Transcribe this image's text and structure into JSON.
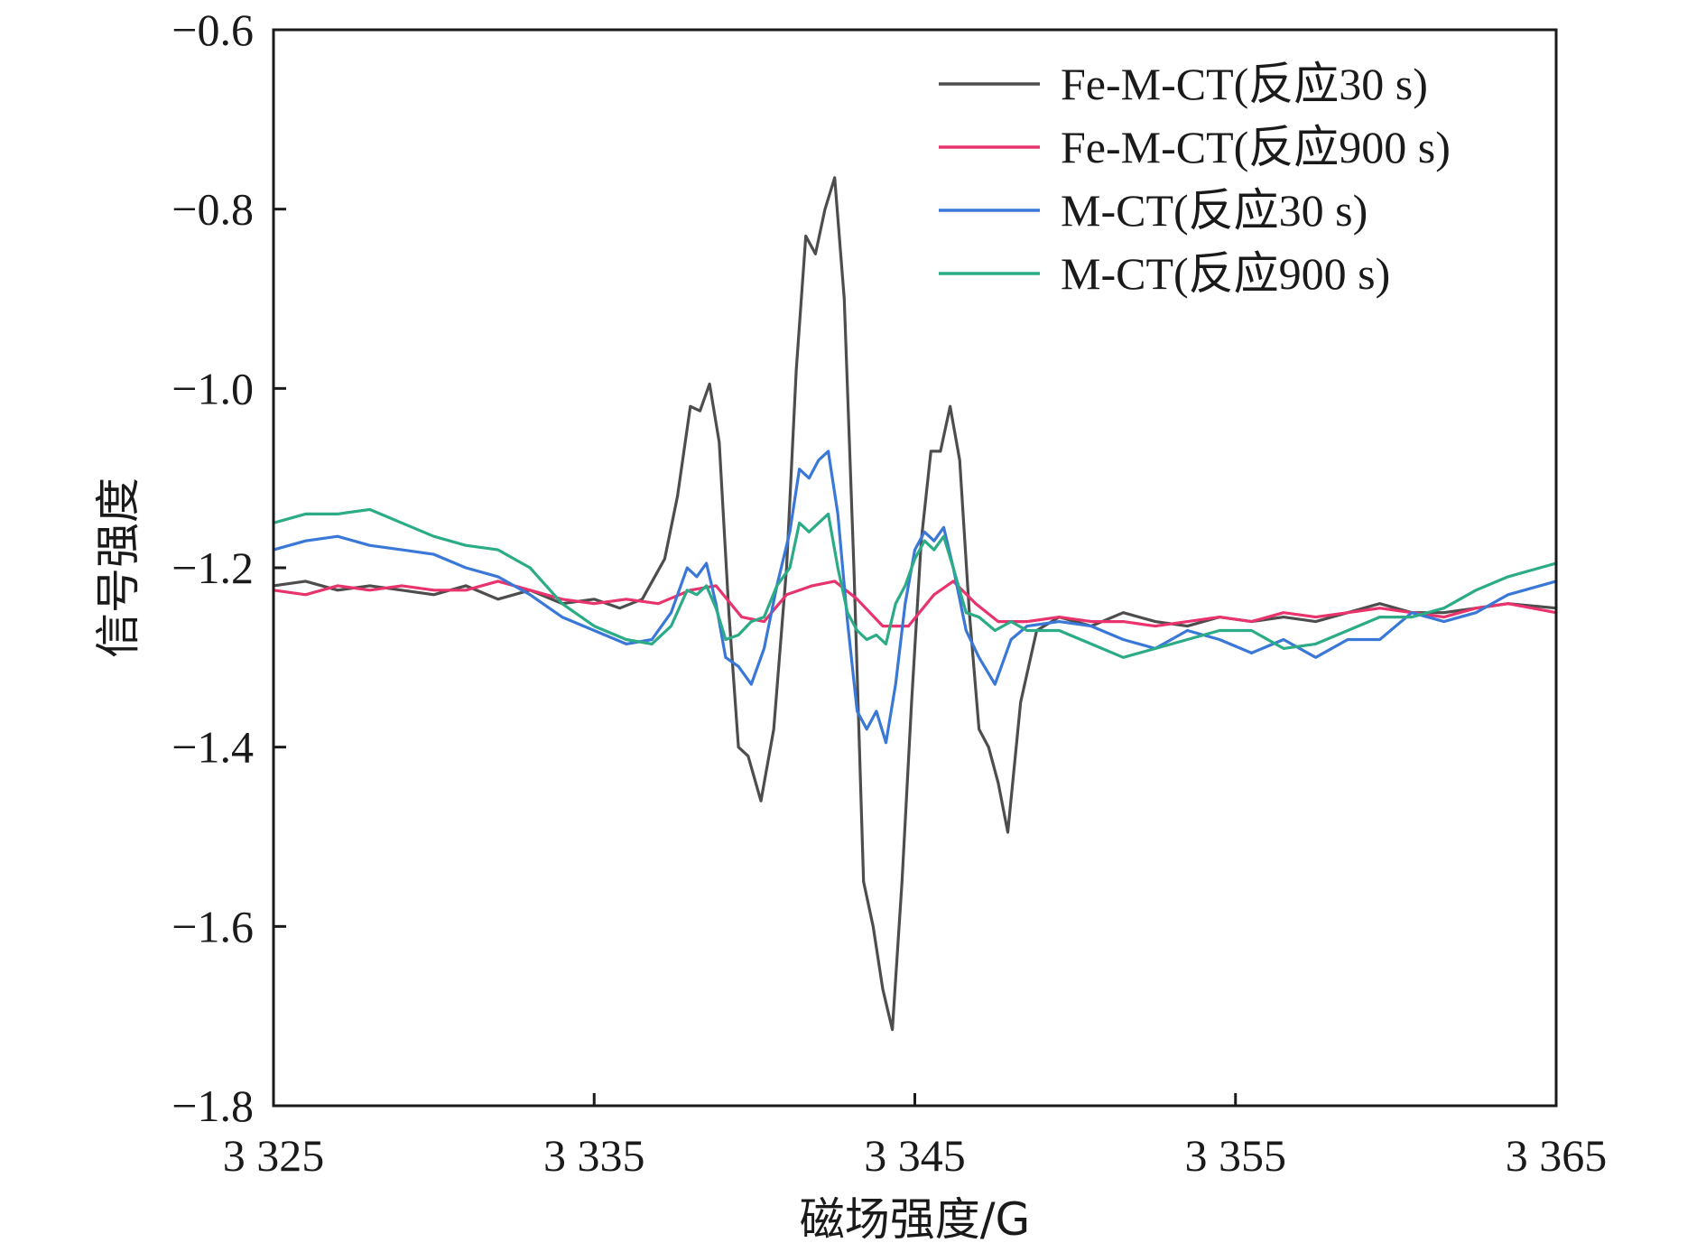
{
  "chart_data": {
    "type": "line",
    "title": "",
    "xlabel": "磁场强度/G",
    "ylabel": "信号强度",
    "xlim": [
      3325,
      3365
    ],
    "ylim": [
      -1.8,
      -0.6
    ],
    "x_ticks": [
      3325,
      3335,
      3345,
      3355,
      3365
    ],
    "x_tick_labels": [
      "3 325",
      "3 335",
      "3 345",
      "3 355",
      "3 365"
    ],
    "y_ticks": [
      -1.8,
      -1.6,
      -1.4,
      -1.2,
      -1.0,
      -0.8,
      -0.6
    ],
    "y_tick_labels": [
      "−1.8",
      "−1.6",
      "−1.4",
      "−1.2",
      "−1.0",
      "−0.8",
      "−0.6"
    ],
    "grid": false,
    "legend_position": "top-right",
    "series": [
      {
        "name": "Fe-M-CT(反应30 s)",
        "color": "#4d4d4d",
        "points": [
          [
            3325,
            -1.22
          ],
          [
            3326,
            -1.215
          ],
          [
            3327,
            -1.225
          ],
          [
            3328,
            -1.22
          ],
          [
            3329,
            -1.225
          ],
          [
            3330,
            -1.23
          ],
          [
            3331,
            -1.22
          ],
          [
            3332,
            -1.235
          ],
          [
            3333,
            -1.225
          ],
          [
            3334,
            -1.24
          ],
          [
            3335,
            -1.235
          ],
          [
            3335.8,
            -1.245
          ],
          [
            3336.5,
            -1.235
          ],
          [
            3337.2,
            -1.19
          ],
          [
            3337.6,
            -1.12
          ],
          [
            3338.0,
            -1.02
          ],
          [
            3338.3,
            -1.025
          ],
          [
            3338.6,
            -0.995
          ],
          [
            3338.9,
            -1.06
          ],
          [
            3339.2,
            -1.25
          ],
          [
            3339.5,
            -1.4
          ],
          [
            3339.8,
            -1.41
          ],
          [
            3340.2,
            -1.46
          ],
          [
            3340.6,
            -1.38
          ],
          [
            3341.0,
            -1.2
          ],
          [
            3341.3,
            -0.98
          ],
          [
            3341.6,
            -0.83
          ],
          [
            3341.9,
            -0.85
          ],
          [
            3342.2,
            -0.8
          ],
          [
            3342.5,
            -0.765
          ],
          [
            3342.8,
            -0.9
          ],
          [
            3343.1,
            -1.2
          ],
          [
            3343.4,
            -1.55
          ],
          [
            3343.7,
            -1.6
          ],
          [
            3344.0,
            -1.67
          ],
          [
            3344.3,
            -1.715
          ],
          [
            3344.6,
            -1.55
          ],
          [
            3344.9,
            -1.35
          ],
          [
            3345.2,
            -1.17
          ],
          [
            3345.5,
            -1.07
          ],
          [
            3345.8,
            -1.07
          ],
          [
            3346.1,
            -1.02
          ],
          [
            3346.4,
            -1.08
          ],
          [
            3346.7,
            -1.25
          ],
          [
            3347.0,
            -1.38
          ],
          [
            3347.3,
            -1.4
          ],
          [
            3347.6,
            -1.44
          ],
          [
            3347.9,
            -1.495
          ],
          [
            3348.3,
            -1.35
          ],
          [
            3348.8,
            -1.27
          ],
          [
            3349.5,
            -1.255
          ],
          [
            3350.5,
            -1.265
          ],
          [
            3351.5,
            -1.25
          ],
          [
            3352.5,
            -1.26
          ],
          [
            3353.5,
            -1.265
          ],
          [
            3354.5,
            -1.255
          ],
          [
            3355.5,
            -1.26
          ],
          [
            3356.5,
            -1.255
          ],
          [
            3357.5,
            -1.26
          ],
          [
            3358.5,
            -1.25
          ],
          [
            3359.5,
            -1.24
          ],
          [
            3360.5,
            -1.25
          ],
          [
            3361.5,
            -1.25
          ],
          [
            3362.5,
            -1.245
          ],
          [
            3363.5,
            -1.24
          ],
          [
            3365,
            -1.245
          ]
        ]
      },
      {
        "name": "Fe-M-CT(反应900 s)",
        "color": "#e8336d",
        "points": [
          [
            3325,
            -1.225
          ],
          [
            3326,
            -1.23
          ],
          [
            3327,
            -1.22
          ],
          [
            3328,
            -1.225
          ],
          [
            3329,
            -1.22
          ],
          [
            3330,
            -1.225
          ],
          [
            3331,
            -1.225
          ],
          [
            3332,
            -1.215
          ],
          [
            3333,
            -1.225
          ],
          [
            3334,
            -1.235
          ],
          [
            3335,
            -1.24
          ],
          [
            3336,
            -1.235
          ],
          [
            3337,
            -1.24
          ],
          [
            3338,
            -1.225
          ],
          [
            3338.8,
            -1.22
          ],
          [
            3339.6,
            -1.255
          ],
          [
            3340.3,
            -1.26
          ],
          [
            3341.0,
            -1.23
          ],
          [
            3341.8,
            -1.22
          ],
          [
            3342.5,
            -1.215
          ],
          [
            3343.2,
            -1.235
          ],
          [
            3344.0,
            -1.265
          ],
          [
            3344.8,
            -1.265
          ],
          [
            3345.6,
            -1.23
          ],
          [
            3346.2,
            -1.215
          ],
          [
            3346.9,
            -1.24
          ],
          [
            3347.6,
            -1.26
          ],
          [
            3348.5,
            -1.26
          ],
          [
            3349.5,
            -1.255
          ],
          [
            3350.5,
            -1.26
          ],
          [
            3351.5,
            -1.26
          ],
          [
            3352.5,
            -1.265
          ],
          [
            3353.5,
            -1.26
          ],
          [
            3354.5,
            -1.255
          ],
          [
            3355.5,
            -1.26
          ],
          [
            3356.5,
            -1.25
          ],
          [
            3357.5,
            -1.255
          ],
          [
            3358.5,
            -1.25
          ],
          [
            3359.5,
            -1.245
          ],
          [
            3360.5,
            -1.25
          ],
          [
            3361.5,
            -1.255
          ],
          [
            3362.5,
            -1.245
          ],
          [
            3363.5,
            -1.24
          ],
          [
            3365,
            -1.25
          ]
        ]
      },
      {
        "name": "M-CT(反应30 s)",
        "color": "#3a78d8",
        "points": [
          [
            3325,
            -1.18
          ],
          [
            3326,
            -1.17
          ],
          [
            3327,
            -1.165
          ],
          [
            3328,
            -1.175
          ],
          [
            3329,
            -1.18
          ],
          [
            3330,
            -1.185
          ],
          [
            3331,
            -1.2
          ],
          [
            3332,
            -1.21
          ],
          [
            3333,
            -1.23
          ],
          [
            3334,
            -1.255
          ],
          [
            3335,
            -1.27
          ],
          [
            3336,
            -1.285
          ],
          [
            3336.8,
            -1.28
          ],
          [
            3337.4,
            -1.25
          ],
          [
            3337.9,
            -1.2
          ],
          [
            3338.2,
            -1.21
          ],
          [
            3338.5,
            -1.195
          ],
          [
            3338.8,
            -1.24
          ],
          [
            3339.1,
            -1.3
          ],
          [
            3339.5,
            -1.31
          ],
          [
            3339.9,
            -1.33
          ],
          [
            3340.3,
            -1.29
          ],
          [
            3340.7,
            -1.22
          ],
          [
            3341.1,
            -1.16
          ],
          [
            3341.4,
            -1.09
          ],
          [
            3341.7,
            -1.1
          ],
          [
            3342.0,
            -1.08
          ],
          [
            3342.3,
            -1.07
          ],
          [
            3342.6,
            -1.14
          ],
          [
            3342.9,
            -1.26
          ],
          [
            3343.2,
            -1.36
          ],
          [
            3343.5,
            -1.38
          ],
          [
            3343.8,
            -1.36
          ],
          [
            3344.1,
            -1.395
          ],
          [
            3344.4,
            -1.33
          ],
          [
            3344.7,
            -1.24
          ],
          [
            3345.0,
            -1.18
          ],
          [
            3345.3,
            -1.16
          ],
          [
            3345.6,
            -1.17
          ],
          [
            3345.9,
            -1.155
          ],
          [
            3346.2,
            -1.2
          ],
          [
            3346.6,
            -1.27
          ],
          [
            3347.0,
            -1.3
          ],
          [
            3347.5,
            -1.33
          ],
          [
            3348.0,
            -1.28
          ],
          [
            3348.5,
            -1.265
          ],
          [
            3349.5,
            -1.26
          ],
          [
            3350.5,
            -1.265
          ],
          [
            3351.5,
            -1.28
          ],
          [
            3352.5,
            -1.29
          ],
          [
            3353.5,
            -1.27
          ],
          [
            3354.5,
            -1.28
          ],
          [
            3355.5,
            -1.295
          ],
          [
            3356.5,
            -1.28
          ],
          [
            3357.5,
            -1.3
          ],
          [
            3358.5,
            -1.28
          ],
          [
            3359.5,
            -1.28
          ],
          [
            3360.5,
            -1.25
          ],
          [
            3361.5,
            -1.26
          ],
          [
            3362.5,
            -1.25
          ],
          [
            3363.5,
            -1.23
          ],
          [
            3365,
            -1.215
          ]
        ]
      },
      {
        "name": "M-CT(反应900 s)",
        "color": "#2bab86",
        "points": [
          [
            3325,
            -1.15
          ],
          [
            3326,
            -1.14
          ],
          [
            3327,
            -1.14
          ],
          [
            3328,
            -1.135
          ],
          [
            3329,
            -1.15
          ],
          [
            3330,
            -1.165
          ],
          [
            3331,
            -1.175
          ],
          [
            3332,
            -1.18
          ],
          [
            3333,
            -1.2
          ],
          [
            3334,
            -1.24
          ],
          [
            3335,
            -1.265
          ],
          [
            3336,
            -1.28
          ],
          [
            3336.8,
            -1.285
          ],
          [
            3337.4,
            -1.265
          ],
          [
            3337.9,
            -1.225
          ],
          [
            3338.2,
            -1.23
          ],
          [
            3338.5,
            -1.22
          ],
          [
            3338.8,
            -1.245
          ],
          [
            3339.1,
            -1.28
          ],
          [
            3339.5,
            -1.275
          ],
          [
            3339.9,
            -1.26
          ],
          [
            3340.3,
            -1.255
          ],
          [
            3340.7,
            -1.22
          ],
          [
            3341.1,
            -1.2
          ],
          [
            3341.4,
            -1.15
          ],
          [
            3341.7,
            -1.16
          ],
          [
            3342.0,
            -1.15
          ],
          [
            3342.3,
            -1.14
          ],
          [
            3342.6,
            -1.2
          ],
          [
            3342.9,
            -1.25
          ],
          [
            3343.2,
            -1.27
          ],
          [
            3343.5,
            -1.28
          ],
          [
            3343.8,
            -1.275
          ],
          [
            3344.1,
            -1.285
          ],
          [
            3344.4,
            -1.24
          ],
          [
            3344.7,
            -1.22
          ],
          [
            3345.0,
            -1.19
          ],
          [
            3345.3,
            -1.17
          ],
          [
            3345.6,
            -1.18
          ],
          [
            3345.9,
            -1.165
          ],
          [
            3346.2,
            -1.2
          ],
          [
            3346.6,
            -1.25
          ],
          [
            3347.0,
            -1.255
          ],
          [
            3347.5,
            -1.27
          ],
          [
            3348.0,
            -1.26
          ],
          [
            3348.5,
            -1.27
          ],
          [
            3349.5,
            -1.27
          ],
          [
            3350.5,
            -1.285
          ],
          [
            3351.5,
            -1.3
          ],
          [
            3352.5,
            -1.29
          ],
          [
            3353.5,
            -1.28
          ],
          [
            3354.5,
            -1.27
          ],
          [
            3355.5,
            -1.27
          ],
          [
            3356.5,
            -1.29
          ],
          [
            3357.5,
            -1.285
          ],
          [
            3358.5,
            -1.27
          ],
          [
            3359.5,
            -1.255
          ],
          [
            3360.5,
            -1.255
          ],
          [
            3361.5,
            -1.245
          ],
          [
            3362.5,
            -1.225
          ],
          [
            3363.5,
            -1.21
          ],
          [
            3365,
            -1.195
          ]
        ]
      }
    ]
  }
}
